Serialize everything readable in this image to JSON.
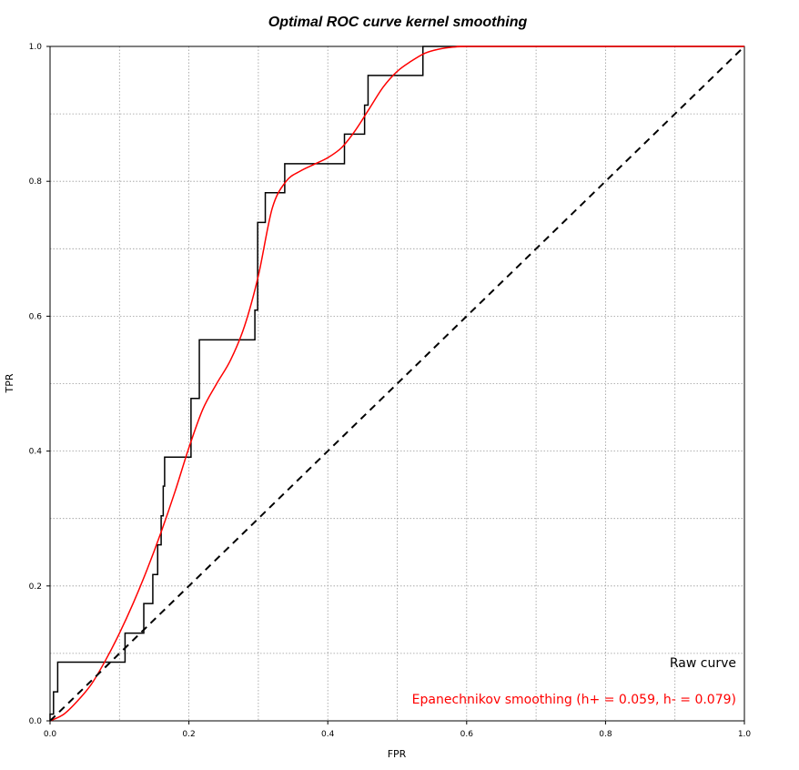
{
  "chart_data": {
    "type": "line",
    "title": "Optimal ROC curve kernel smoothing",
    "xlabel": "FPR",
    "ylabel": "TPR",
    "xlim": [
      0,
      1
    ],
    "ylim": [
      0,
      1
    ],
    "grid": true,
    "legend_position": "bottom-right",
    "xticks": [
      "0.0",
      "0.2",
      "0.4",
      "0.6",
      "0.8",
      "1.0"
    ],
    "yticks": [
      "0.0",
      "0.2",
      "0.4",
      "0.6",
      "0.8",
      "1.0"
    ],
    "series": [
      {
        "name": "Raw curve",
        "color": "#000000",
        "style": "step",
        "points": [
          [
            0.0,
            0.0
          ],
          [
            0.0,
            0.01
          ],
          [
            0.005,
            0.01
          ],
          [
            0.005,
            0.043
          ],
          [
            0.011,
            0.043
          ],
          [
            0.011,
            0.087
          ],
          [
            0.108,
            0.087
          ],
          [
            0.108,
            0.13
          ],
          [
            0.135,
            0.13
          ],
          [
            0.135,
            0.174
          ],
          [
            0.148,
            0.174
          ],
          [
            0.148,
            0.217
          ],
          [
            0.155,
            0.217
          ],
          [
            0.155,
            0.261
          ],
          [
            0.16,
            0.261
          ],
          [
            0.16,
            0.304
          ],
          [
            0.163,
            0.304
          ],
          [
            0.163,
            0.348
          ],
          [
            0.165,
            0.348
          ],
          [
            0.165,
            0.391
          ],
          [
            0.203,
            0.391
          ],
          [
            0.203,
            0.478
          ],
          [
            0.215,
            0.478
          ],
          [
            0.215,
            0.565
          ],
          [
            0.295,
            0.565
          ],
          [
            0.295,
            0.609
          ],
          [
            0.299,
            0.609
          ],
          [
            0.299,
            0.739
          ],
          [
            0.31,
            0.739
          ],
          [
            0.31,
            0.783
          ],
          [
            0.338,
            0.783
          ],
          [
            0.338,
            0.826
          ],
          [
            0.424,
            0.826
          ],
          [
            0.424,
            0.87
          ],
          [
            0.453,
            0.87
          ],
          [
            0.453,
            0.913
          ],
          [
            0.458,
            0.913
          ],
          [
            0.458,
            0.957
          ],
          [
            0.537,
            0.957
          ],
          [
            0.537,
            1.0
          ],
          [
            1.0,
            1.0
          ]
        ]
      },
      {
        "name": "Epanechnikov smoothing (h+ = 0.059, h- = 0.079)",
        "color": "#ff0000",
        "style": "smooth",
        "points": [
          [
            0.0,
            0.0
          ],
          [
            0.02,
            0.01
          ],
          [
            0.04,
            0.03
          ],
          [
            0.06,
            0.055
          ],
          [
            0.08,
            0.09
          ],
          [
            0.1,
            0.13
          ],
          [
            0.12,
            0.175
          ],
          [
            0.14,
            0.225
          ],
          [
            0.16,
            0.28
          ],
          [
            0.18,
            0.34
          ],
          [
            0.2,
            0.405
          ],
          [
            0.22,
            0.462
          ],
          [
            0.24,
            0.5
          ],
          [
            0.26,
            0.535
          ],
          [
            0.28,
            0.585
          ],
          [
            0.3,
            0.66
          ],
          [
            0.32,
            0.76
          ],
          [
            0.34,
            0.8
          ],
          [
            0.36,
            0.815
          ],
          [
            0.38,
            0.825
          ],
          [
            0.4,
            0.835
          ],
          [
            0.42,
            0.85
          ],
          [
            0.44,
            0.876
          ],
          [
            0.46,
            0.908
          ],
          [
            0.48,
            0.94
          ],
          [
            0.5,
            0.963
          ],
          [
            0.52,
            0.978
          ],
          [
            0.54,
            0.99
          ],
          [
            0.56,
            0.996
          ],
          [
            0.58,
            0.999
          ],
          [
            0.6,
            1.0
          ],
          [
            0.62,
            1.0
          ],
          [
            1.0,
            1.0
          ]
        ]
      },
      {
        "name": "",
        "color": "#000000",
        "style": "dashed",
        "points": [
          [
            0.0,
            0.0
          ],
          [
            1.0,
            1.0
          ]
        ]
      }
    ]
  }
}
